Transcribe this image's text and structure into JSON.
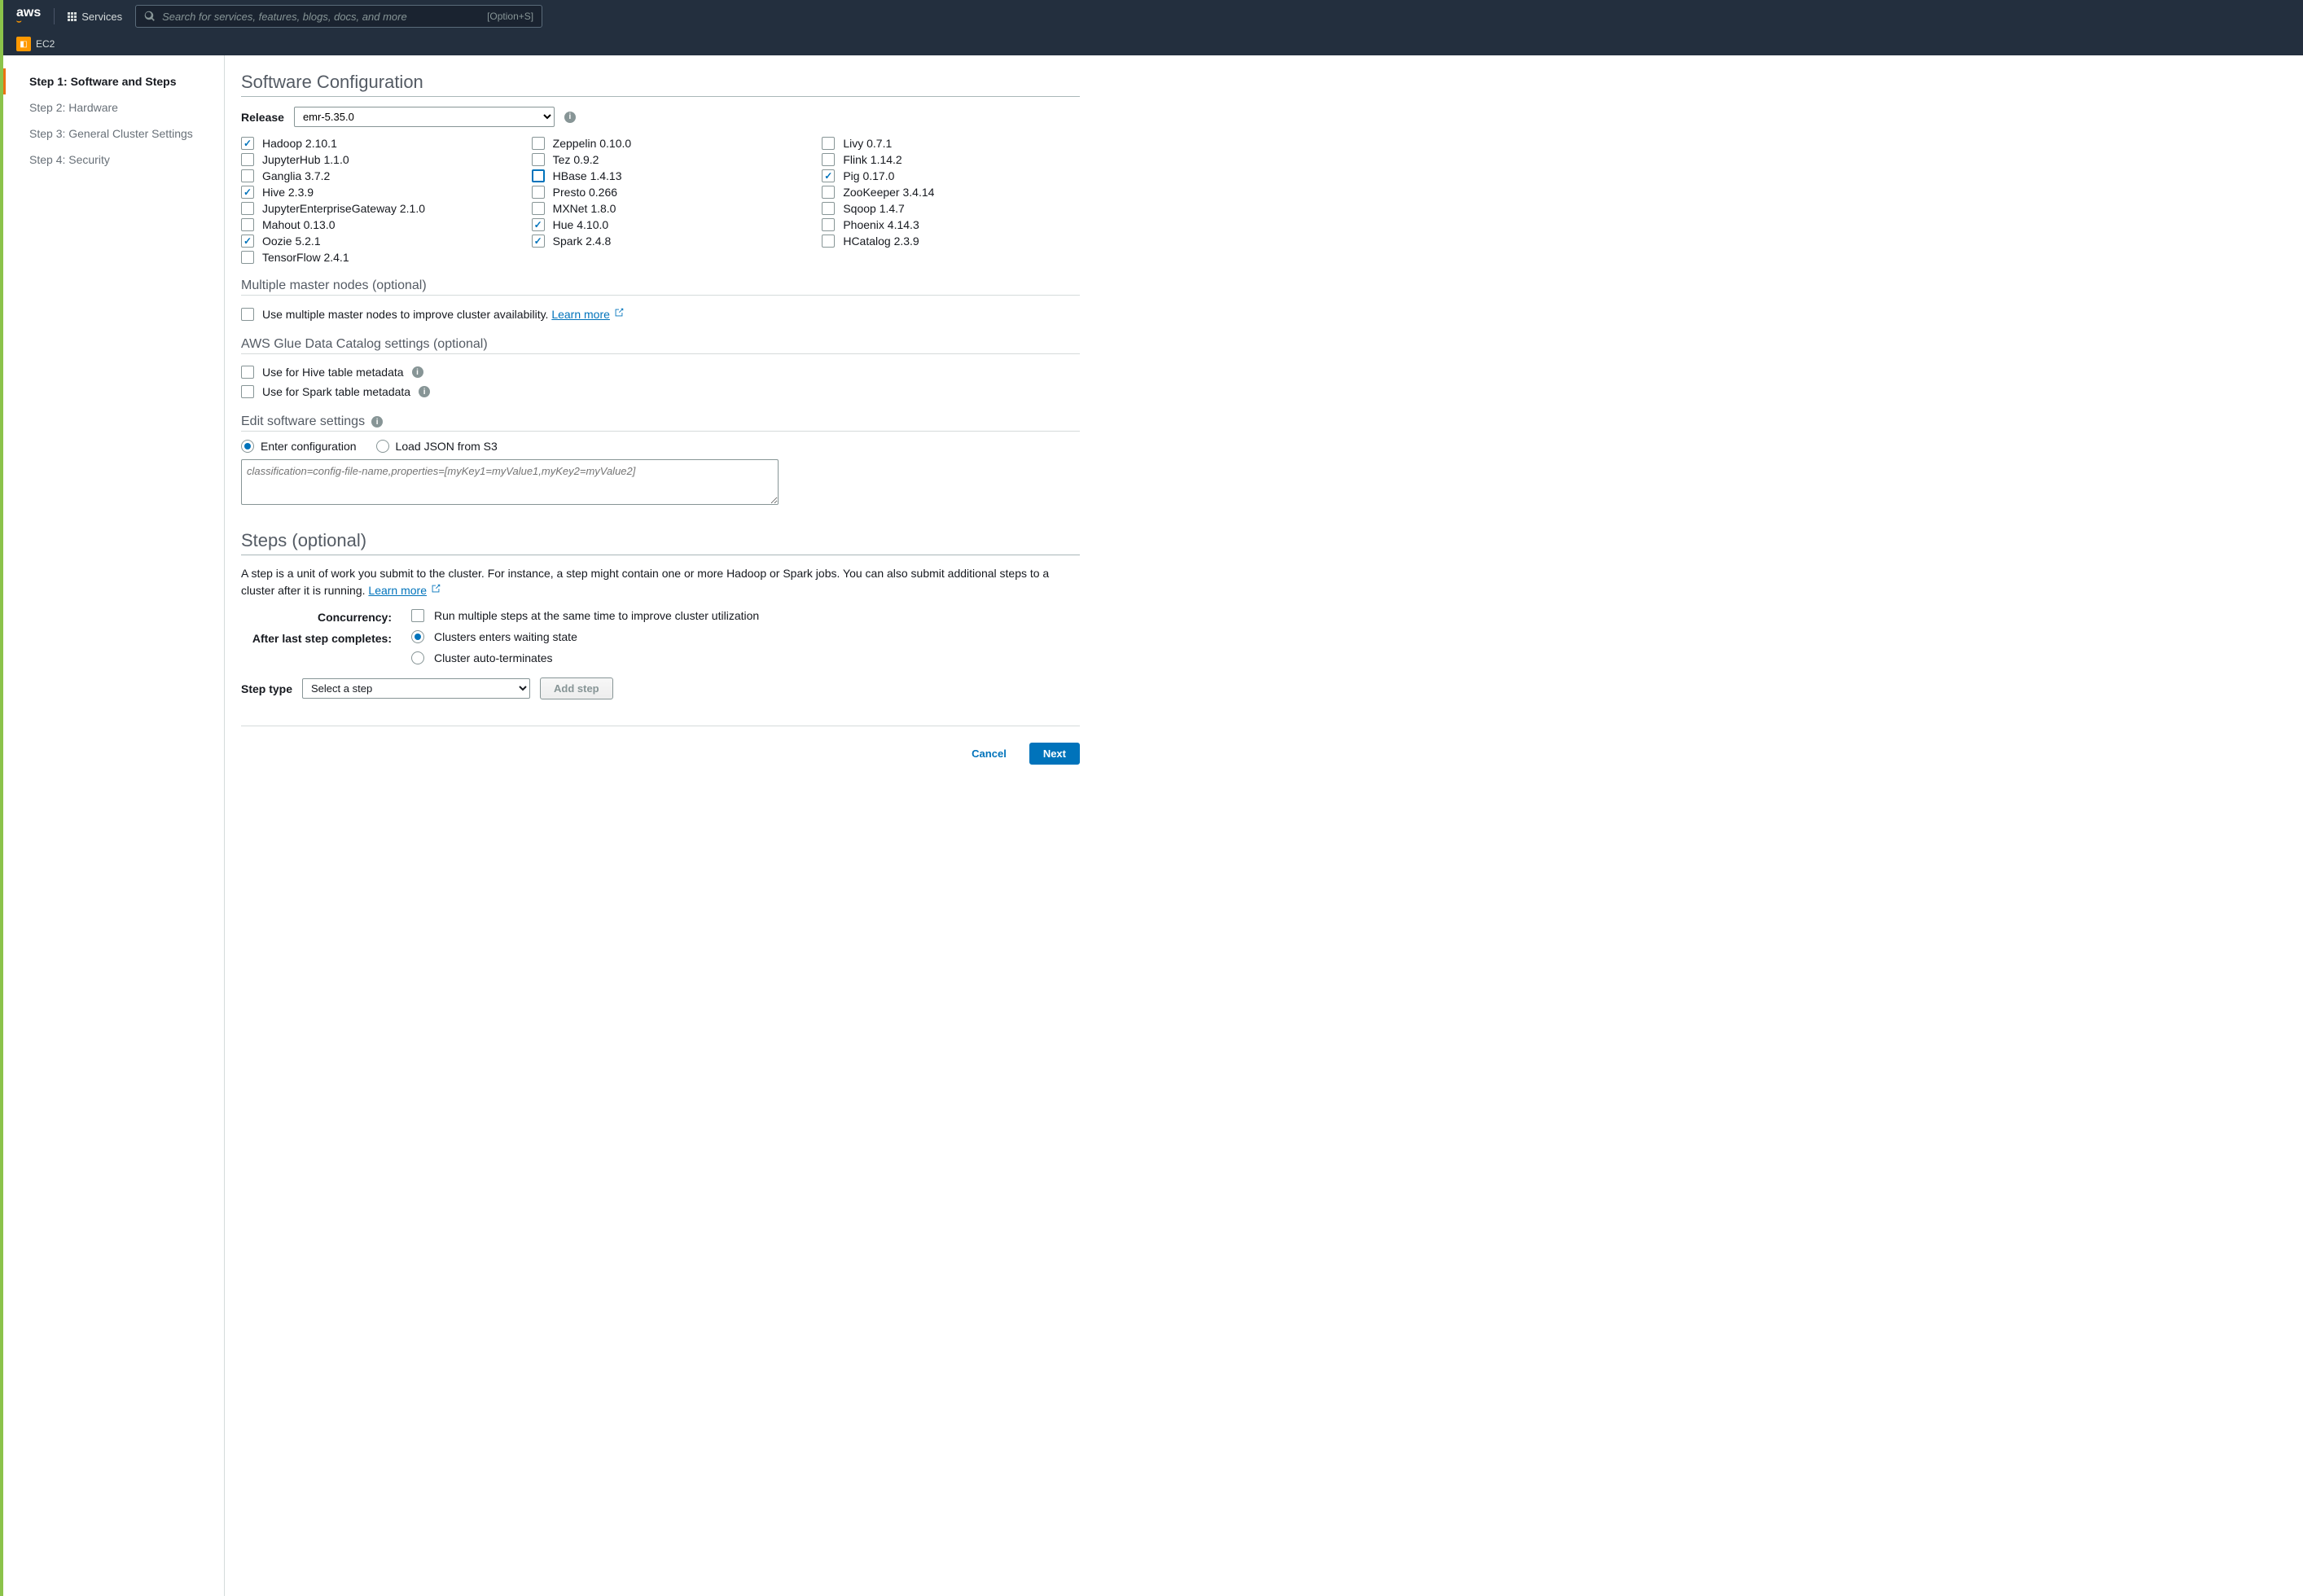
{
  "topnav": {
    "logo": "aws",
    "services": "Services",
    "search_placeholder": "Search for services, features, blogs, docs, and more",
    "search_kbd": "[Option+S]"
  },
  "subnav": {
    "ec2": "EC2"
  },
  "sidebar": {
    "items": [
      {
        "label": "Step 1: Software and Steps",
        "active": true
      },
      {
        "label": "Step 2: Hardware",
        "active": false
      },
      {
        "label": "Step 3: General Cluster Settings",
        "active": false
      },
      {
        "label": "Step 4: Security",
        "active": false
      }
    ]
  },
  "software": {
    "title": "Software Configuration",
    "release_label": "Release",
    "release_value": "emr-5.35.0",
    "apps": [
      {
        "name": "Hadoop 2.10.1",
        "checked": true,
        "focused": false
      },
      {
        "name": "Zeppelin 0.10.0",
        "checked": false,
        "focused": false
      },
      {
        "name": "Livy 0.7.1",
        "checked": false,
        "focused": false
      },
      {
        "name": "JupyterHub 1.1.0",
        "checked": false,
        "focused": false
      },
      {
        "name": "Tez 0.9.2",
        "checked": false,
        "focused": false
      },
      {
        "name": "Flink 1.14.2",
        "checked": false,
        "focused": false
      },
      {
        "name": "Ganglia 3.7.2",
        "checked": false,
        "focused": false
      },
      {
        "name": "HBase 1.4.13",
        "checked": false,
        "focused": true
      },
      {
        "name": "Pig 0.17.0",
        "checked": true,
        "focused": false
      },
      {
        "name": "Hive 2.3.9",
        "checked": true,
        "focused": false
      },
      {
        "name": "Presto 0.266",
        "checked": false,
        "focused": false
      },
      {
        "name": "ZooKeeper 3.4.14",
        "checked": false,
        "focused": false
      },
      {
        "name": "JupyterEnterpriseGateway 2.1.0",
        "checked": false,
        "focused": false
      },
      {
        "name": "MXNet 1.8.0",
        "checked": false,
        "focused": false
      },
      {
        "name": "Sqoop 1.4.7",
        "checked": false,
        "focused": false
      },
      {
        "name": "Mahout 0.13.0",
        "checked": false,
        "focused": false
      },
      {
        "name": "Hue 4.10.0",
        "checked": true,
        "focused": false
      },
      {
        "name": "Phoenix 4.14.3",
        "checked": false,
        "focused": false
      },
      {
        "name": "Oozie 5.2.1",
        "checked": true,
        "focused": false
      },
      {
        "name": "Spark 2.4.8",
        "checked": true,
        "focused": false
      },
      {
        "name": "HCatalog 2.3.9",
        "checked": false,
        "focused": false
      },
      {
        "name": "TensorFlow 2.4.1",
        "checked": false,
        "focused": false
      }
    ]
  },
  "multi_master": {
    "title": "Multiple master nodes (optional)",
    "cb_label": "Use multiple master nodes to improve cluster availability.",
    "learn_more": "Learn more"
  },
  "glue": {
    "title": "AWS Glue Data Catalog settings (optional)",
    "hive": "Use for Hive table metadata",
    "spark": "Use for Spark table metadata"
  },
  "edit_settings": {
    "title": "Edit software settings",
    "enter": "Enter configuration",
    "load_s3": "Load JSON from S3",
    "placeholder": "classification=config-file-name,properties=[myKey1=myValue1,myKey2=myValue2]"
  },
  "steps": {
    "title": "Steps (optional)",
    "desc_a": "A step is a unit of work you submit to the cluster. For instance, a step might contain one or more Hadoop or Spark jobs. You can also submit additional steps to a cluster after it is running.",
    "learn_more": "Learn more",
    "concurrency_label": "Concurrency:",
    "concurrency_desc": "Run multiple steps at the same time to improve cluster utilization",
    "after_last_label": "After last step completes:",
    "opt_wait": "Clusters enters waiting state",
    "opt_term": "Cluster auto-terminates",
    "step_type_label": "Step type",
    "step_type_value": "Select a step",
    "add_step": "Add step"
  },
  "footer": {
    "cancel": "Cancel",
    "next": "Next"
  }
}
